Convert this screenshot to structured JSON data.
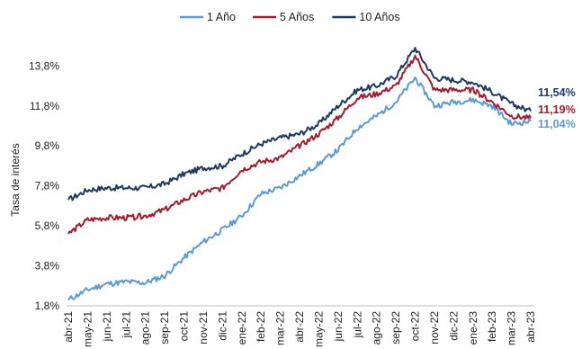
{
  "chart_data": {
    "type": "line",
    "title": "",
    "xlabel": "",
    "ylabel": "Tasa de interés",
    "y_tick_labels": [
      "1,8%",
      "3,8%",
      "5,8%",
      "7,8%",
      "9,8%",
      "11,8%",
      "13,8%"
    ],
    "y_ticks": [
      1.8,
      3.8,
      5.8,
      7.8,
      9.8,
      11.8,
      13.8
    ],
    "ylim": [
      1.8,
      15.3
    ],
    "grid": false,
    "legend_position": "top-center",
    "categories": [
      "abr-21",
      "may-21",
      "jun-21",
      "jul-21",
      "ago-21",
      "sep-21",
      "oct-21",
      "nov-21",
      "dic-21",
      "ene-22",
      "feb-22",
      "mar-22",
      "abr-22",
      "may-22",
      "jun-22",
      "jul-22",
      "ago-22",
      "sep-22",
      "oct-22",
      "nov-22",
      "dic-22",
      "ene-23",
      "feb-23",
      "mar-23",
      "abr-23"
    ],
    "series": [
      {
        "name": "1 Año",
        "color": "#5b9bd5",
        "values": [
          2.1,
          2.6,
          2.9,
          3.0,
          2.95,
          3.3,
          4.2,
          5.0,
          5.6,
          6.3,
          7.4,
          7.7,
          8.3,
          8.9,
          9.6,
          10.7,
          11.3,
          12.0,
          13.2,
          11.8,
          12.0,
          12.1,
          11.8,
          10.9,
          11.04
        ]
      },
      {
        "name": "5 Años",
        "color": "#a51d2d",
        "values": [
          5.4,
          6.1,
          6.2,
          6.2,
          6.3,
          6.6,
          7.1,
          7.5,
          7.7,
          8.6,
          9.0,
          9.2,
          9.8,
          10.4,
          11.2,
          12.2,
          12.4,
          12.8,
          14.3,
          12.6,
          12.6,
          12.6,
          12.0,
          11.3,
          11.19
        ]
      },
      {
        "name": "10 Años",
        "color": "#1f3864",
        "values": [
          7.1,
          7.6,
          7.7,
          7.7,
          7.7,
          7.9,
          8.4,
          8.7,
          8.8,
          9.4,
          9.9,
          10.2,
          10.4,
          10.9,
          11.8,
          12.6,
          12.8,
          13.3,
          14.7,
          13.2,
          13.1,
          13.0,
          12.5,
          11.9,
          11.54
        ]
      }
    ],
    "end_labels": [
      {
        "text": "11,54%",
        "color": "#1f3864"
      },
      {
        "text": "11,19%",
        "color": "#a51d2d"
      },
      {
        "text": "11,04%",
        "color": "#5b9bd5"
      }
    ]
  }
}
